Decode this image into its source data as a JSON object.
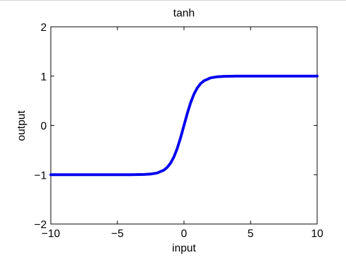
{
  "chart_data": {
    "type": "line",
    "title": "tanh",
    "xlabel": "input",
    "ylabel": "output",
    "xlim": [
      -10,
      10
    ],
    "ylim": [
      -2,
      2
    ],
    "xticks": [
      -10,
      -5,
      0,
      5,
      10
    ],
    "yticks": [
      -2,
      -1,
      0,
      1,
      2
    ],
    "xtick_labels": [
      "−10",
      "−5",
      "0",
      "5",
      "10"
    ],
    "ytick_labels": [
      "−2",
      "−1",
      "0",
      "1",
      "2"
    ],
    "grid": false,
    "series": [
      {
        "function": "tanh",
        "color": "#0000ee",
        "x": [
          -10,
          -8,
          -6,
          -5,
          -4,
          -3,
          -2.5,
          -2,
          -1.5,
          -1.25,
          -1,
          -0.75,
          -0.5,
          -0.25,
          0,
          0.25,
          0.5,
          0.75,
          1,
          1.25,
          1.5,
          2,
          2.5,
          3,
          4,
          5,
          6,
          8,
          10
        ],
        "y": [
          -1,
          -1,
          -1,
          -0.9999,
          -0.9993,
          -0.9951,
          -0.9866,
          -0.964,
          -0.9051,
          -0.8483,
          -0.7616,
          -0.6351,
          -0.4621,
          -0.2449,
          0,
          0.2449,
          0.4621,
          0.6351,
          0.7616,
          0.8483,
          0.9051,
          0.964,
          0.9866,
          0.9951,
          0.9993,
          0.9999,
          1,
          1,
          1
        ]
      }
    ]
  }
}
